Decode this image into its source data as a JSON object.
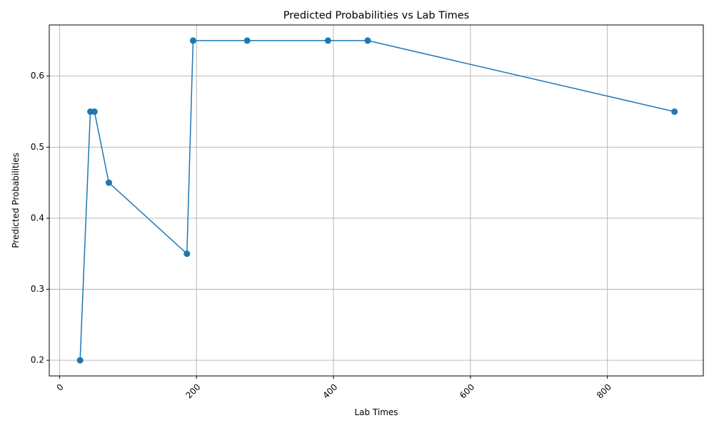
{
  "chart_data": {
    "type": "line",
    "title": "Predicted Probabilities vs Lab Times",
    "xlabel": "Lab Times",
    "ylabel": "Predicted Probabilities",
    "xlim": [
      -15,
      940
    ],
    "ylim": [
      0.178,
      0.672
    ],
    "xticks": [
      0,
      200,
      400,
      600,
      800
    ],
    "xtick_labels": [
      "0",
      "200",
      "400",
      "600",
      "800"
    ],
    "xtick_rotation": 45,
    "yticks": [
      0.2,
      0.3,
      0.4,
      0.5,
      0.6
    ],
    "ytick_labels": [
      "0.2",
      "0.3",
      "0.4",
      "0.5",
      "0.6"
    ],
    "grid": true,
    "marker": "circle",
    "color": "#1f77b4",
    "x": [
      30,
      45,
      51,
      72,
      186,
      195,
      274,
      392,
      450,
      898
    ],
    "y": [
      0.2,
      0.55,
      0.55,
      0.45,
      0.35,
      0.65,
      0.65,
      0.65,
      0.65,
      0.55
    ]
  }
}
